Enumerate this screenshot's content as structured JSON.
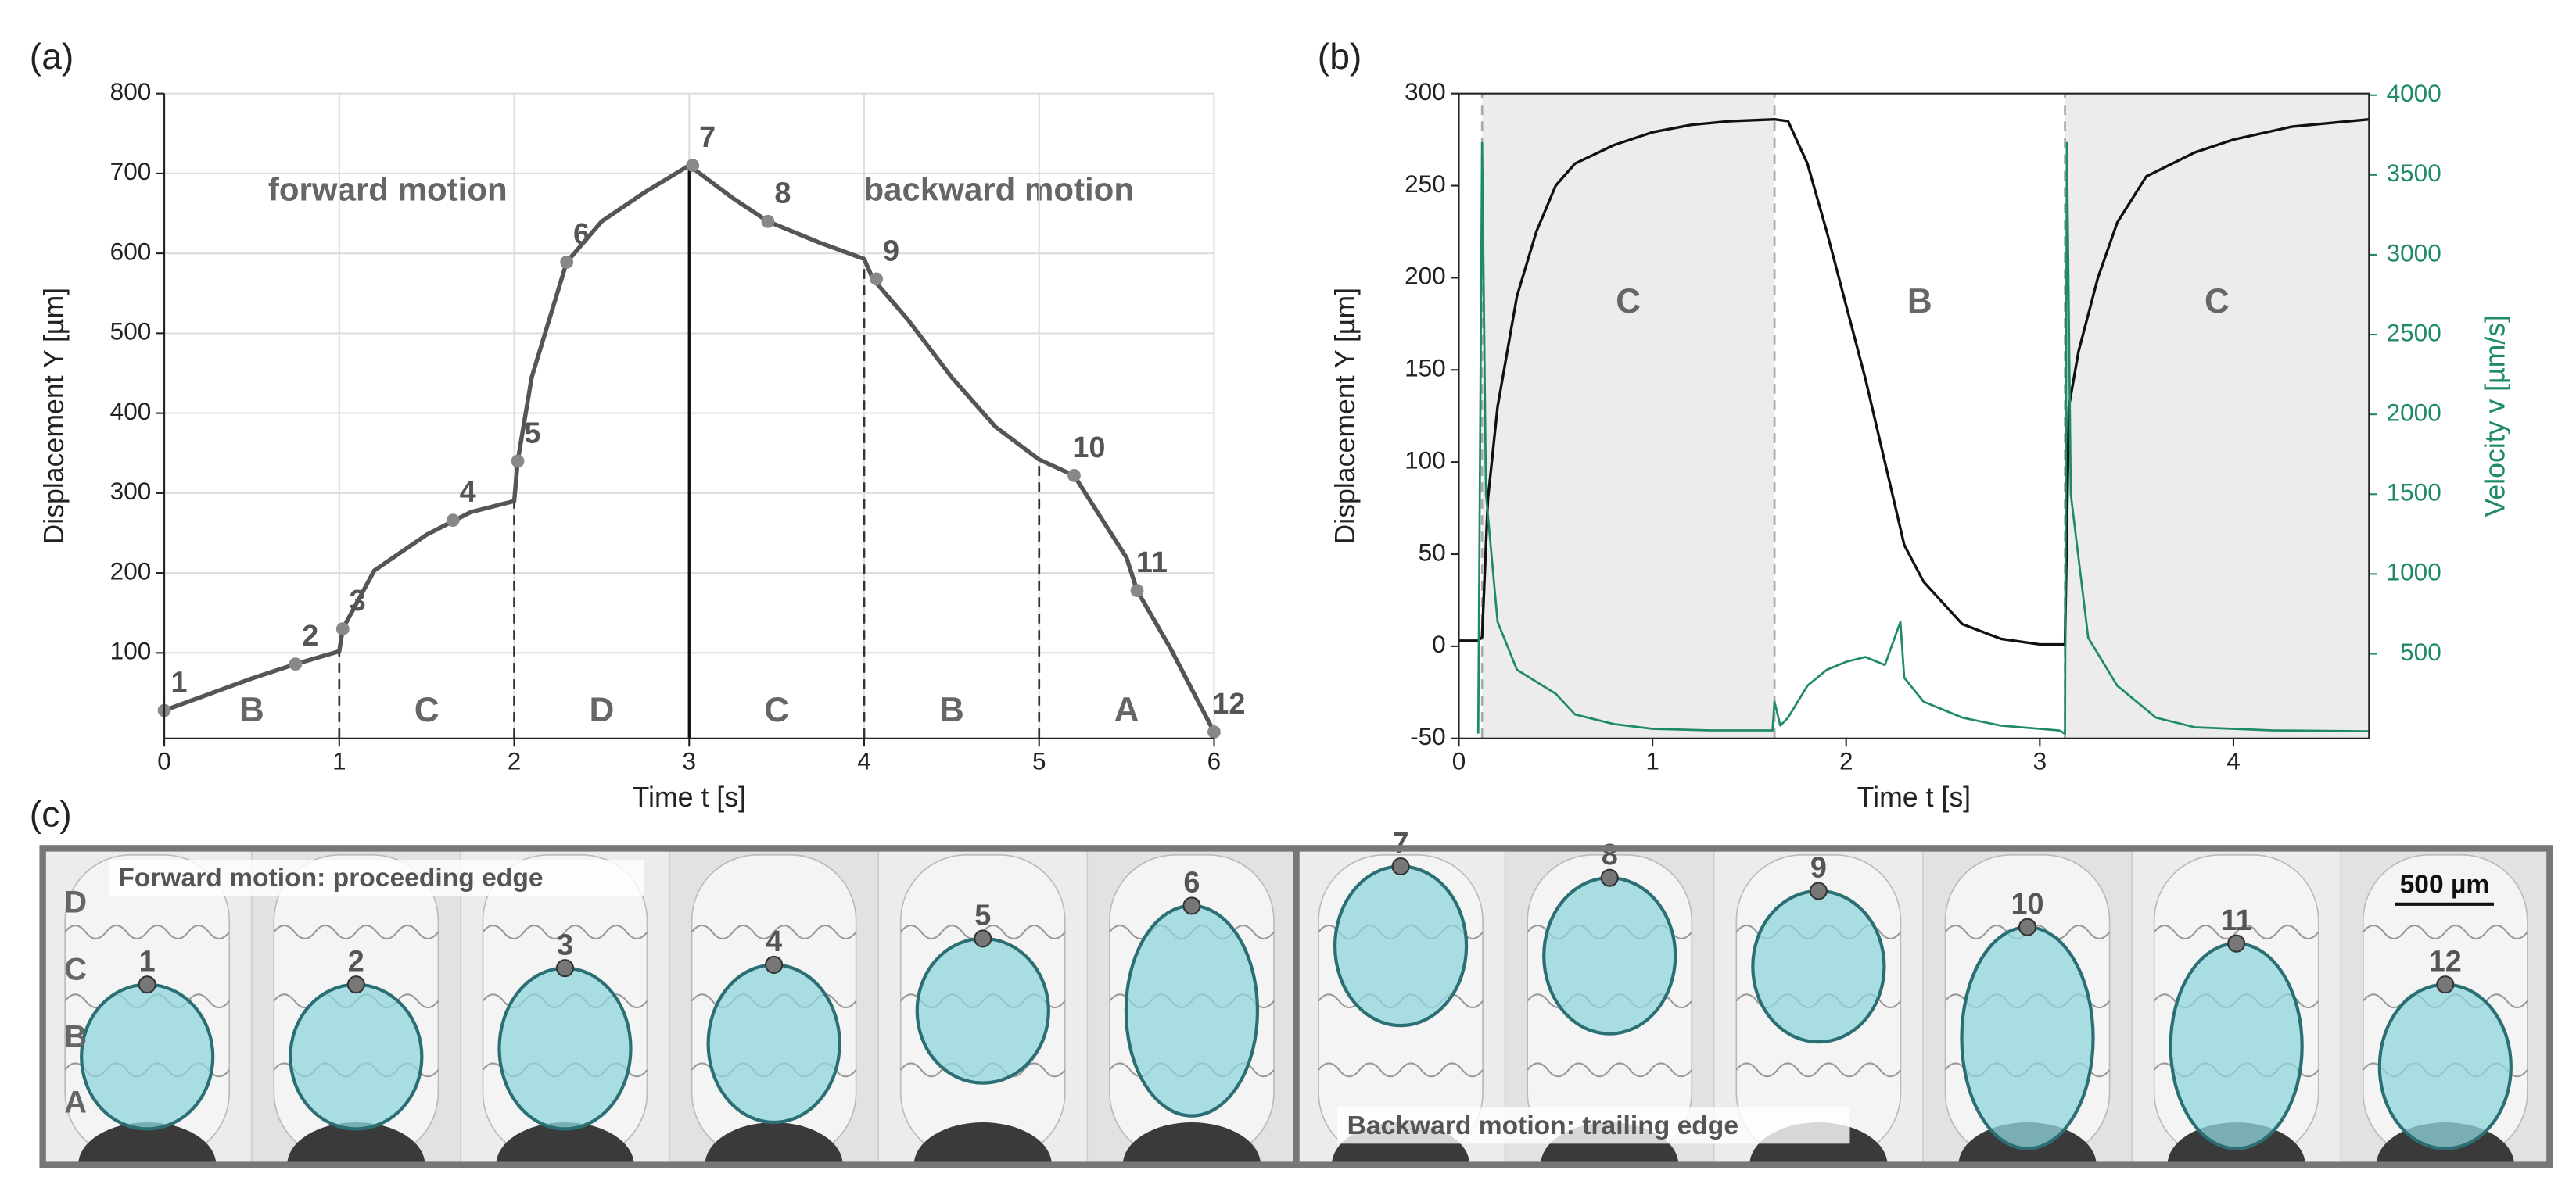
{
  "chart_data": [
    {
      "type": "line",
      "label": "(a)",
      "x_label": "Time t [s]",
      "y_label": "Displacement Y [µm]",
      "xlim": [
        0,
        6
      ],
      "ylim": [
        -7,
        800
      ],
      "xticks": [
        0,
        1,
        2,
        3,
        4,
        5,
        6
      ],
      "yticks": [
        100,
        200,
        300,
        400,
        500,
        600,
        700,
        800
      ],
      "grid": true,
      "axis_box": false,
      "region_label_position": "bottom",
      "annotations": [
        "forward motion",
        "backward motion"
      ],
      "vlines": [
        {
          "x": 1,
          "style": "dashed"
        },
        {
          "x": 2,
          "style": "dashed"
        },
        {
          "x": 3,
          "style": "solid"
        },
        {
          "x": 4,
          "style": "dashed"
        },
        {
          "x": 5,
          "style": "dashed"
        }
      ],
      "vline_extent": "to-curve",
      "regions": [
        {
          "label": "B",
          "start": 0,
          "end": 1
        },
        {
          "label": "C",
          "start": 1,
          "end": 2
        },
        {
          "label": "D",
          "start": 2,
          "end": 3
        },
        {
          "label": "C",
          "start": 3,
          "end": 4
        },
        {
          "label": "B",
          "start": 4,
          "end": 5
        },
        {
          "label": "A",
          "start": 5,
          "end": 6
        }
      ],
      "series": [
        {
          "type": "line",
          "color": "#555555",
          "x": [
            0,
            0.25,
            0.5,
            0.75,
            1,
            1.02,
            1.2,
            1.5,
            1.75,
            2,
            2.02,
            2.1,
            2.3,
            2.5,
            2.75,
            3,
            3.25,
            3.45,
            3.75,
            4,
            4.05,
            4.25,
            4.5,
            4.75,
            5,
            5.2,
            5.5,
            5.56,
            5.75,
            6
          ],
          "values": [
            28,
            48,
            68,
            86,
            102,
            130,
            203,
            248,
            276,
            290,
            340,
            445,
            589,
            640,
            677,
            710,
            669,
            640,
            613,
            593,
            568,
            517,
            445,
            383,
            342,
            322,
            219,
            178,
            106,
            1
          ]
        },
        {
          "type": "scatter",
          "color": "#888888",
          "x": [
            0,
            0.75,
            1.02,
            1.65,
            2.02,
            2.3,
            3.02,
            3.45,
            4.07,
            5.2,
            5.56,
            6
          ],
          "values": [
            28,
            86,
            130,
            266,
            340,
            589,
            710,
            640,
            568,
            322,
            178,
            1
          ],
          "labels": [
            "1",
            "2",
            "3",
            "4",
            "5",
            "6",
            "7",
            "8",
            "9",
            "10",
            "11",
            "12"
          ]
        }
      ]
    },
    {
      "type": "line",
      "label": "(b)",
      "x_label": "Time t [s]",
      "y_label": "Displacement Y [µm]",
      "y2_label": "Velocity v [µm/s]",
      "xlim": [
        0,
        4.7
      ],
      "ylim": [
        -50,
        300
      ],
      "y2lim": [
        -30,
        4010
      ],
      "xticks": [
        0,
        1,
        2,
        3,
        4
      ],
      "yticks": [
        -50,
        0,
        50,
        100,
        150,
        200,
        250,
        300
      ],
      "y2ticks": [
        500,
        1000,
        1500,
        2000,
        2500,
        3000,
        3500,
        4000
      ],
      "y2_color": "#1f8a6a",
      "grid": false,
      "axis_box": true,
      "region_label_position": "top",
      "vlines": [
        {
          "x": 0.12,
          "style": "dashed"
        },
        {
          "x": 1.63,
          "style": "dashed"
        },
        {
          "x": 3.13,
          "style": "dashed"
        }
      ],
      "vline_extent": "full",
      "regions": [
        {
          "label": "C",
          "start": 0.12,
          "end": 1.63,
          "shaded": true
        },
        {
          "label": "B",
          "start": 1.63,
          "end": 3.13
        },
        {
          "label": "C",
          "start": 3.13,
          "end": 4.7,
          "shaded": true
        }
      ],
      "series": [
        {
          "type": "line",
          "color": "#111111",
          "x": [
            0,
            0.1,
            0.12,
            0.15,
            0.2,
            0.3,
            0.4,
            0.5,
            0.6,
            0.8,
            1.0,
            1.2,
            1.4,
            1.63,
            1.7,
            1.8,
            1.9,
            2.0,
            2.1,
            2.2,
            2.3,
            2.4,
            2.6,
            2.8,
            3.0,
            3.13,
            3.15,
            3.2,
            3.3,
            3.4,
            3.55,
            3.8,
            4.0,
            4.3,
            4.7
          ],
          "values": [
            3,
            3,
            5,
            80,
            130,
            190,
            225,
            250,
            262,
            272,
            279,
            283,
            285,
            286,
            285,
            262,
            225,
            185,
            145,
            100,
            55,
            35,
            12,
            4,
            1,
            1,
            130,
            160,
            200,
            230,
            255,
            268,
            275,
            282,
            286
          ]
        },
        {
          "type": "line",
          "color": "#1f8a6a",
          "axis": "y2",
          "x": [
            0.1,
            0.12,
            0.14,
            0.2,
            0.3,
            0.5,
            0.6,
            0.8,
            1.0,
            1.3,
            1.62,
            1.63,
            1.66,
            1.7,
            1.8,
            1.9,
            2.0,
            2.1,
            2.2,
            2.28,
            2.3,
            2.4,
            2.6,
            2.8,
            3.1,
            3.13,
            3.14,
            3.16,
            3.25,
            3.4,
            3.6,
            3.8,
            4.2,
            4.7
          ],
          "values": [
            0,
            3700,
            1500,
            700,
            400,
            250,
            120,
            60,
            30,
            20,
            20,
            200,
            50,
            100,
            300,
            400,
            450,
            480,
            430,
            700,
            350,
            200,
            100,
            50,
            20,
            0,
            3700,
            1500,
            600,
            300,
            100,
            40,
            20,
            15
          ]
        }
      ]
    }
  ],
  "panel_c": {
    "label": "(c)",
    "forward_caption": "Forward motion: proceeding edge",
    "backward_caption": "Backward motion: trailing edge",
    "scale_bar": "500 µm",
    "row_labels": [
      "D",
      "C",
      "B",
      "A"
    ],
    "frame_labels": [
      "1",
      "2",
      "3",
      "4",
      "5",
      "6",
      "7",
      "8",
      "9",
      "10",
      "11",
      "12"
    ]
  }
}
